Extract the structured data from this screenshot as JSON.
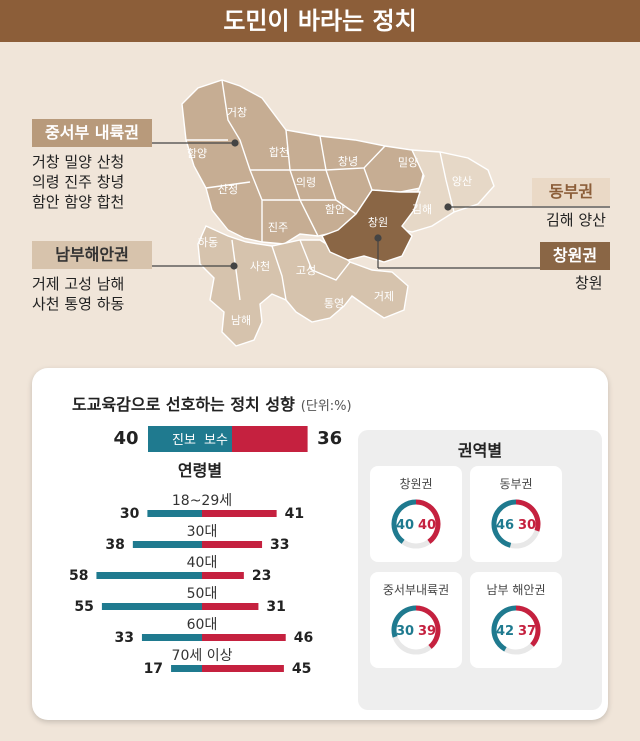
{
  "header": {
    "title": "도민이 바라는 정치"
  },
  "regions": [
    {
      "key": "west",
      "label": "중서부 내륙권",
      "towns_line1": "거창 밀양 산청",
      "towns_line2": "의령 진주 창녕",
      "towns_line3": "함안 함양 합천"
    },
    {
      "key": "south",
      "label": "남부해안권",
      "towns_line1": "거제 고성 남해",
      "towns_line2": "사천 통영 하동"
    },
    {
      "key": "east",
      "label": "동부권",
      "towns_line1": "김해 양산"
    },
    {
      "key": "changwon",
      "label": "창원권",
      "towns_line1": "창원"
    }
  ],
  "map": {
    "names": [
      "거창",
      "함양",
      "합천",
      "산청",
      "창녕",
      "밀양",
      "양산",
      "의령",
      "김해",
      "함안",
      "창원",
      "진주",
      "하동",
      "사천",
      "고성",
      "거제",
      "통영",
      "남해"
    ],
    "colors": {
      "west": "#c6ad93",
      "south": "#d6c3ad",
      "east": "#e6d8c7",
      "changwon": "#8a6645",
      "line": "#ffffff"
    }
  },
  "chart_data": [
    {
      "type": "bar",
      "title": "도교육감으로 선호하는 정치 성향",
      "unit": "(단위:%)",
      "overall": {
        "progressive": 40,
        "conservative": 36,
        "progressive_label": "진보",
        "conservative_label": "보수"
      },
      "age_title": "연령별",
      "categories": [
        "18~29세",
        "30대",
        "40대",
        "50대",
        "60대",
        "70세 이상"
      ],
      "series": [
        {
          "name": "진보",
          "values": [
            30,
            38,
            58,
            55,
            33,
            17
          ]
        },
        {
          "name": "보수",
          "values": [
            41,
            33,
            23,
            31,
            46,
            45
          ]
        }
      ],
      "colors": {
        "progressive": "#1f7a8f",
        "conservative": "#c5213f",
        "track": "#e8e8e8"
      }
    },
    {
      "type": "pie",
      "title": "권역별",
      "panels": [
        {
          "name": "창원권",
          "progressive": 40,
          "conservative": 40
        },
        {
          "name": "동부권",
          "progressive": 46,
          "conservative": 30
        },
        {
          "name": "중서부내륙권",
          "progressive": 30,
          "conservative": 39
        },
        {
          "name": "남부 해안권",
          "progressive": 42,
          "conservative": 37
        }
      ]
    }
  ]
}
